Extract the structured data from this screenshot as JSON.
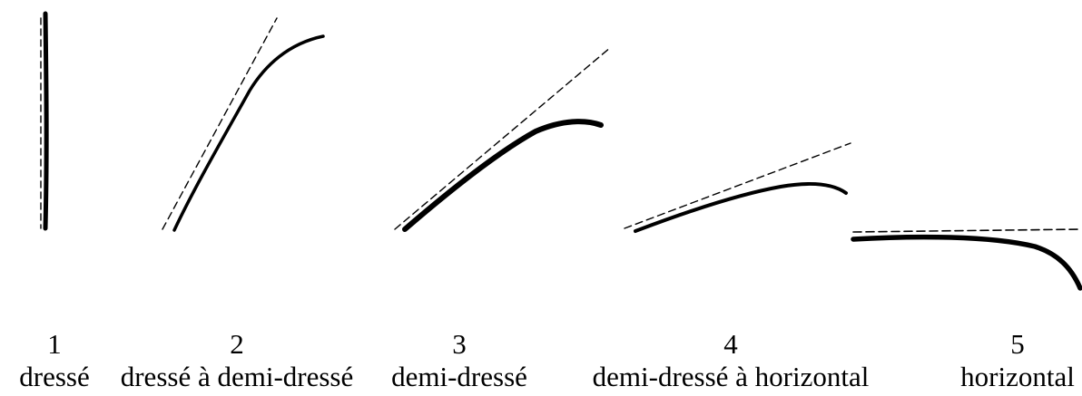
{
  "figure": {
    "stages": [
      {
        "number": "1",
        "label": "dressé"
      },
      {
        "number": "2",
        "label": "dressé à demi-dressé"
      },
      {
        "number": "3",
        "label": "demi-dressé"
      },
      {
        "number": "4",
        "label": "demi-dressé à horizontal"
      },
      {
        "number": "5",
        "label": "horizontal"
      }
    ],
    "colors": {
      "ink": "#000000",
      "background": "#ffffff"
    }
  }
}
